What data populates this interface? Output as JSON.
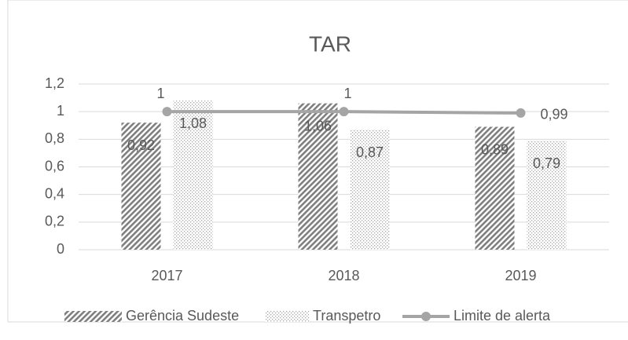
{
  "chart_data": {
    "type": "bar",
    "title": "TAR",
    "categories": [
      "2017",
      "2018",
      "2019"
    ],
    "series": [
      {
        "name": "Gerência Sudeste",
        "type": "bar",
        "pattern": "hatch",
        "color": "#7f7f7f",
        "values": [
          0.92,
          1.06,
          0.89
        ],
        "value_labels": [
          "0,92",
          "1,06",
          "0,89"
        ]
      },
      {
        "name": "Transpetro",
        "type": "bar",
        "pattern": "dots",
        "color": "#a6a6a6",
        "values": [
          1.08,
          0.87,
          0.79
        ],
        "value_labels": [
          "1,08",
          "0,87",
          "0,79"
        ]
      },
      {
        "name": "Limite de alerta",
        "type": "line",
        "color": "#a5a5a5",
        "values": [
          1,
          1,
          0.99
        ],
        "value_labels": [
          "1",
          "1",
          "0,99"
        ]
      }
    ],
    "ylim": [
      0,
      1.2
    ],
    "yticks": [
      0,
      {
        "value": 0.2,
        "label": "0,2"
      },
      {
        "value": 0.4,
        "label": "0,4"
      },
      {
        "value": 0.6,
        "label": "0,6"
      },
      {
        "value": 0.8,
        "label": "0,8"
      },
      1,
      {
        "value": 1.2,
        "label": "1,2"
      }
    ],
    "grid": true,
    "legend": "bottom"
  }
}
